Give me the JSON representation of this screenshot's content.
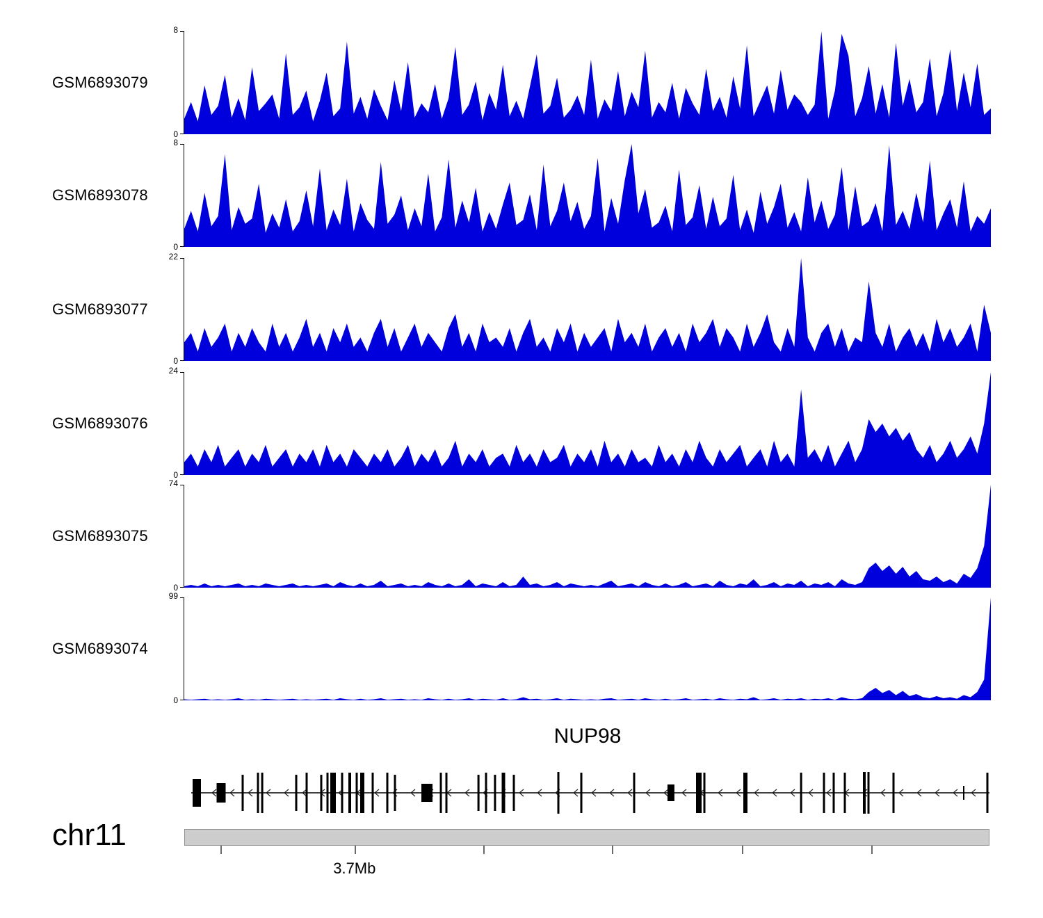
{
  "figure": {
    "background": "#ffffff",
    "signal_color": "#0000dd"
  },
  "chart_data": {
    "type": "area",
    "description": "Genome browser read-coverage tracks over the NUP98 locus on chr11",
    "signal_color": "#0000dd",
    "tracks": [
      {
        "label": "GSM6893079",
        "ymax": 8,
        "ymin": 0,
        "values": [
          1.2,
          2.5,
          1.0,
          3.8,
          1.5,
          2.2,
          4.6,
          1.3,
          2.8,
          1.1,
          5.2,
          1.8,
          2.4,
          3.1,
          1.2,
          6.3,
          1.5,
          2.1,
          3.4,
          1.0,
          2.6,
          4.8,
          1.4,
          2.0,
          7.2,
          1.6,
          2.9,
          1.2,
          3.5,
          2.2,
          1.1,
          4.2,
          1.8,
          5.6,
          1.3,
          2.4,
          1.7,
          3.9,
          1.2,
          2.8,
          6.8,
          1.5,
          2.3,
          4.1,
          1.1,
          3.2,
          1.9,
          5.4,
          1.4,
          2.6,
          1.2,
          3.7,
          6.2,
          1.6,
          2.2,
          4.4,
          1.3,
          1.9,
          3.0,
          1.5,
          5.8,
          1.2,
          2.7,
          1.8,
          4.9,
          1.4,
          3.3,
          2.1,
          6.5,
          1.3,
          2.5,
          1.7,
          4.0,
          1.2,
          3.6,
          2.4,
          1.5,
          5.1,
          1.8,
          2.9,
          1.3,
          4.5,
          2.0,
          6.9,
          1.4,
          2.6,
          3.8,
          1.6,
          5.0,
          1.9,
          3.1,
          2.5,
          1.5,
          2.3,
          8.0,
          1.2,
          3.4,
          7.8,
          6.1,
          1.4,
          2.8,
          5.3,
          1.6,
          3.9,
          1.3,
          7.1,
          2.2,
          4.3,
          1.7,
          2.5,
          5.9,
          1.4,
          3.2,
          6.6,
          1.8,
          4.8,
          2.1,
          5.5,
          1.5,
          2.0
        ]
      },
      {
        "label": "GSM6893078",
        "ymax": 8,
        "ymin": 0,
        "values": [
          1.4,
          2.8,
          1.2,
          4.2,
          1.6,
          2.4,
          7.2,
          1.3,
          3.1,
          1.8,
          2.2,
          4.9,
          1.1,
          2.6,
          1.5,
          3.7,
          1.2,
          2.0,
          4.4,
          1.6,
          6.1,
          1.3,
          2.9,
          1.7,
          5.3,
          1.2,
          3.4,
          2.1,
          1.4,
          6.6,
          1.8,
          2.5,
          4.0,
          1.3,
          3.0,
          1.6,
          5.7,
          1.2,
          2.3,
          6.8,
          1.5,
          3.6,
          1.9,
          4.6,
          1.2,
          2.7,
          1.4,
          3.3,
          5.0,
          1.7,
          2.1,
          4.1,
          1.3,
          6.4,
          1.6,
          2.8,
          5.0,
          2.0,
          3.5,
          1.4,
          2.4,
          6.9,
          1.2,
          3.8,
          1.8,
          5.2,
          8.0,
          2.6,
          4.5,
          1.5,
          1.9,
          3.2,
          1.2,
          6.0,
          1.7,
          2.3,
          4.8,
          1.4,
          3.9,
          1.6,
          2.2,
          5.6,
          1.3,
          2.9,
          1.1,
          4.3,
          1.8,
          3.1,
          4.9,
          1.5,
          2.7,
          1.2,
          5.4,
          1.9,
          3.6,
          1.4,
          2.5,
          6.2,
          1.3,
          4.7,
          1.6,
          2.0,
          3.4,
          1.2,
          7.9,
          1.7,
          2.8,
          1.4,
          4.2,
          1.9,
          6.7,
          1.3,
          2.6,
          3.7,
          1.5,
          5.1,
          1.2,
          2.4,
          1.8,
          3.0
        ]
      },
      {
        "label": "GSM6893077",
        "ymax": 22,
        "ymin": 0,
        "values": [
          4,
          6,
          2,
          7,
          3,
          5,
          8,
          2,
          6,
          3,
          7,
          4,
          2,
          8,
          3,
          6,
          2,
          5,
          9,
          3,
          6,
          2,
          7,
          4,
          8,
          3,
          5,
          2,
          6,
          9,
          3,
          7,
          2,
          5,
          8,
          3,
          6,
          4,
          2,
          7,
          10,
          3,
          6,
          2,
          8,
          4,
          5,
          3,
          7,
          2,
          6,
          9,
          3,
          5,
          2,
          7,
          4,
          8,
          2,
          6,
          3,
          5,
          7,
          2,
          9,
          4,
          6,
          3,
          8,
          2,
          5,
          7,
          3,
          6,
          2,
          8,
          4,
          6,
          9,
          3,
          7,
          5,
          2,
          8,
          3,
          6,
          10,
          4,
          2,
          7,
          3,
          22,
          5,
          2,
          6,
          8,
          3,
          7,
          2,
          5,
          4,
          17,
          6,
          3,
          8,
          2,
          5,
          7,
          3,
          6,
          2,
          9,
          4,
          7,
          3,
          5,
          8,
          2,
          12,
          6
        ]
      },
      {
        "label": "GSM6893076",
        "ymax": 24,
        "ymin": 0,
        "values": [
          3,
          5,
          2,
          6,
          3,
          7,
          2,
          4,
          6,
          2,
          5,
          3,
          7,
          2,
          4,
          6,
          2,
          5,
          3,
          6,
          2,
          7,
          3,
          5,
          2,
          6,
          4,
          2,
          5,
          3,
          6,
          2,
          4,
          7,
          2,
          5,
          3,
          6,
          2,
          4,
          8,
          2,
          5,
          3,
          6,
          2,
          4,
          5,
          2,
          7,
          3,
          5,
          2,
          6,
          3,
          4,
          7,
          2,
          5,
          3,
          6,
          2,
          8,
          3,
          5,
          2,
          6,
          3,
          4,
          2,
          7,
          3,
          5,
          2,
          6,
          3,
          8,
          4,
          2,
          6,
          3,
          5,
          7,
          2,
          4,
          6,
          2,
          8,
          3,
          5,
          2,
          20,
          4,
          6,
          3,
          7,
          2,
          5,
          8,
          3,
          6,
          13,
          10,
          12,
          9,
          11,
          8,
          10,
          6,
          4,
          7,
          3,
          5,
          8,
          4,
          6,
          9,
          5,
          12,
          24
        ]
      },
      {
        "label": "GSM6893075",
        "ymax": 74,
        "ymin": 0,
        "values": [
          1,
          2,
          1,
          3,
          1,
          2,
          1,
          2,
          3,
          1,
          2,
          1,
          3,
          2,
          1,
          2,
          3,
          1,
          2,
          1,
          2,
          3,
          1,
          4,
          2,
          1,
          3,
          1,
          2,
          5,
          1,
          2,
          3,
          1,
          2,
          1,
          4,
          2,
          1,
          3,
          1,
          2,
          6,
          1,
          3,
          2,
          1,
          4,
          1,
          2,
          8,
          2,
          3,
          1,
          2,
          4,
          1,
          3,
          2,
          1,
          2,
          1,
          3,
          5,
          1,
          2,
          3,
          1,
          4,
          2,
          1,
          3,
          1,
          2,
          4,
          1,
          2,
          3,
          1,
          5,
          2,
          1,
          3,
          2,
          6,
          1,
          2,
          4,
          1,
          3,
          2,
          5,
          1,
          3,
          2,
          4,
          1,
          6,
          3,
          2,
          4,
          14,
          18,
          12,
          16,
          10,
          15,
          8,
          12,
          6,
          5,
          8,
          4,
          6,
          3,
          10,
          7,
          14,
          30,
          74
        ]
      },
      {
        "label": "GSM6893074",
        "ymax": 99,
        "ymin": 0,
        "values": [
          1,
          0.5,
          1,
          1.5,
          0.5,
          1,
          0.5,
          1,
          2,
          0.5,
          1,
          0.5,
          1.5,
          1,
          0.5,
          1,
          1.5,
          0.5,
          1,
          0.5,
          1,
          1.5,
          0.5,
          2,
          1,
          0.5,
          1.5,
          0.5,
          1,
          2,
          0.5,
          1,
          1.5,
          0.5,
          1,
          0.5,
          2,
          1,
          0.5,
          1.5,
          0.5,
          1,
          2,
          0.5,
          1.5,
          1,
          0.5,
          2,
          0.5,
          1,
          3,
          1,
          1.5,
          0.5,
          1,
          2,
          0.5,
          1.5,
          1,
          0.5,
          1,
          0.5,
          1.5,
          2,
          0.5,
          1,
          1.5,
          0.5,
          2,
          1,
          0.5,
          1.5,
          0.5,
          1,
          2,
          0.5,
          1,
          1.5,
          0.5,
          2,
          1,
          0.5,
          1.5,
          1,
          3,
          0.5,
          1,
          2,
          0.5,
          1.5,
          1,
          2,
          0.5,
          1.5,
          1,
          2,
          0.5,
          3,
          1.5,
          1,
          2,
          8,
          12,
          7,
          10,
          5,
          9,
          4,
          6,
          3,
          2,
          4,
          2,
          3,
          1.5,
          5,
          3,
          8,
          20,
          99
        ]
      }
    ],
    "gene_track": {
      "gene_name": "NUP98",
      "strand": "-",
      "arrow_char": "<",
      "exons": [
        [
          1.55,
          12,
          40
        ],
        [
          4.57,
          13,
          28
        ],
        [
          7.24,
          3,
          52
        ],
        [
          9.14,
          3,
          58
        ],
        [
          9.66,
          3,
          58
        ],
        [
          13.88,
          3,
          52
        ],
        [
          15.17,
          3,
          58
        ],
        [
          16.98,
          3,
          52
        ],
        [
          17.76,
          3,
          58
        ],
        [
          18.45,
          8,
          58
        ],
        [
          19.57,
          3,
          58
        ],
        [
          20.52,
          4,
          58
        ],
        [
          21.38,
          3,
          58
        ],
        [
          22.07,
          6,
          58
        ],
        [
          23.36,
          3,
          58
        ],
        [
          25.17,
          3,
          58
        ],
        [
          26.12,
          3,
          52
        ],
        [
          30.09,
          16,
          26
        ],
        [
          31.81,
          3,
          58
        ],
        [
          32.5,
          3,
          58
        ],
        [
          36.47,
          3,
          52
        ],
        [
          37.41,
          3,
          58
        ],
        [
          38.53,
          3,
          52
        ],
        [
          39.57,
          5,
          58
        ],
        [
          40.86,
          3,
          52
        ],
        [
          46.38,
          3,
          60
        ],
        [
          49.22,
          3,
          58
        ],
        [
          55.78,
          3,
          58
        ],
        [
          60.34,
          10,
          24
        ],
        [
          63.79,
          8,
          58
        ],
        [
          64.48,
          3,
          58
        ],
        [
          69.57,
          6,
          58
        ],
        [
          76.47,
          3,
          58
        ],
        [
          79.31,
          3,
          58
        ],
        [
          80.52,
          3,
          58
        ],
        [
          81.9,
          3,
          58
        ],
        [
          84.31,
          4,
          60
        ],
        [
          84.83,
          3,
          60
        ],
        [
          87.93,
          3,
          58
        ],
        [
          96.64,
          2,
          20
        ],
        [
          99.57,
          3,
          58
        ]
      ]
    },
    "ruler": {
      "chrom_label": "chr11",
      "scale_label": "3.7Mb",
      "scale_label_pct": 21.1,
      "tick_positions_pct": [
        4.5,
        21.1,
        37.1,
        53.0,
        69.1,
        85.2
      ]
    }
  }
}
